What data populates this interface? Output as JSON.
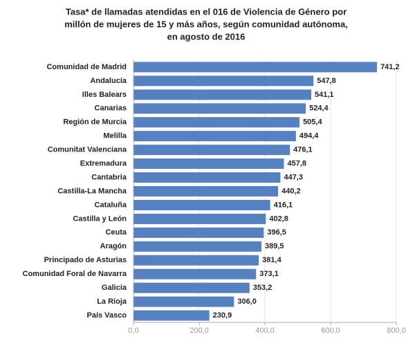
{
  "chart_data": {
    "type": "barh",
    "title": [
      "Tasa* de llamadas atendidas en el 016 de Violencia de Género por",
      "millón de mujeres de 15 y más años, según comunidad autónoma,",
      "en agosto de 2016"
    ],
    "categories": [
      "Comunidad de Madrid",
      "Andalucía",
      "Illes Balears",
      "Canarias",
      "Región de Murcia",
      "Melilla",
      "Comunitat Valenciana",
      "Extremadura",
      "Cantabria",
      "Castilla-La Mancha",
      "Cataluña",
      "Castilla y León",
      "Ceuta",
      "Aragón",
      "Principado de Asturias",
      "Comunidad Foral de Navarra",
      "Galicia",
      "La Rioja",
      "País Vasco"
    ],
    "values": [
      741.2,
      547.8,
      541.1,
      524.4,
      505.4,
      494.4,
      476.1,
      457.8,
      447.3,
      440.2,
      416.1,
      402.8,
      396.5,
      389.5,
      381.4,
      373.1,
      353.2,
      306.0,
      230.9
    ],
    "value_labels": [
      "741,2",
      "547,8",
      "541,1",
      "524,4",
      "505,4",
      "494,4",
      "476,1",
      "457,8",
      "447,3",
      "440,2",
      "416,1",
      "402,8",
      "396,5",
      "389,5",
      "381,4",
      "373,1",
      "353,2",
      "306,0",
      "230,9"
    ],
    "color": "#5581c1",
    "xlim": [
      0,
      800
    ],
    "xticks": [
      {
        "value": 0,
        "label": "0,0"
      },
      {
        "value": 200,
        "label": "200,0"
      },
      {
        "value": 400,
        "label": "400,0"
      },
      {
        "value": 600,
        "label": "600,0"
      },
      {
        "value": 800,
        "label": "800,0"
      }
    ],
    "grid": true
  }
}
